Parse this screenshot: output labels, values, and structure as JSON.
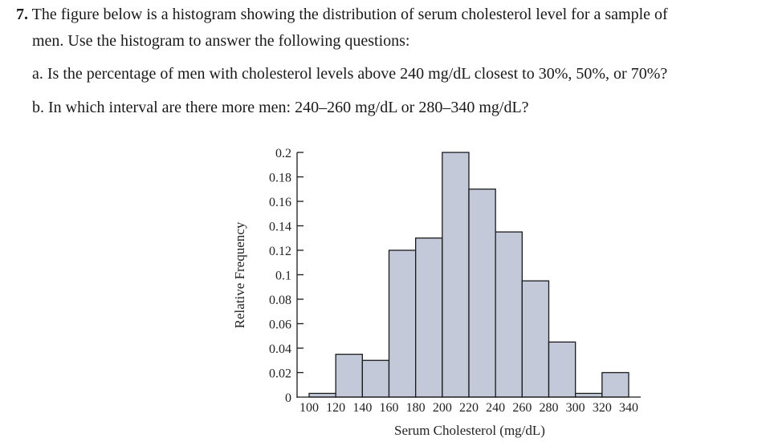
{
  "question": {
    "number": "7.",
    "line1": "The figure below is a histogram showing the distribution of serum cholesterol level for a sample of",
    "line2": "men. Use the histogram to answer the following questions:",
    "part_a": "a. Is the percentage of men with cholesterol levels above 240 mg/dL closest to 30%, 50%, or 70%?",
    "part_b": "b. In which interval are there more men: 240–260 mg/dL or 280–340 mg/dL?"
  },
  "chart_data": {
    "type": "bar",
    "title": "",
    "xlabel": "Serum Cholesterol (mg/dL)",
    "ylabel": "Relative Frequency",
    "x_ticks": [
      100,
      120,
      140,
      160,
      180,
      200,
      220,
      240,
      260,
      280,
      300,
      320,
      340
    ],
    "y_ticks": [
      "0",
      "0.02",
      "0.04",
      "0.06",
      "0.08",
      "0.1",
      "0.12",
      "0.14",
      "0.16",
      "0.18",
      "0.2"
    ],
    "ylim": [
      0,
      0.2
    ],
    "bins": [
      {
        "from": 100,
        "to": 120,
        "value": 0.003
      },
      {
        "from": 120,
        "to": 140,
        "value": 0.035
      },
      {
        "from": 140,
        "to": 160,
        "value": 0.03
      },
      {
        "from": 160,
        "to": 180,
        "value": 0.12
      },
      {
        "from": 180,
        "to": 200,
        "value": 0.13
      },
      {
        "from": 200,
        "to": 220,
        "value": 0.2
      },
      {
        "from": 220,
        "to": 240,
        "value": 0.17
      },
      {
        "from": 240,
        "to": 260,
        "value": 0.135
      },
      {
        "from": 260,
        "to": 280,
        "value": 0.095
      },
      {
        "from": 280,
        "to": 300,
        "value": 0.045
      },
      {
        "from": 300,
        "to": 320,
        "value": 0.003
      },
      {
        "from": 320,
        "to": 340,
        "value": 0.02
      }
    ],
    "bar_color": "#c4c9d9",
    "bar_stroke": "#1a1a1a",
    "grid": false
  }
}
